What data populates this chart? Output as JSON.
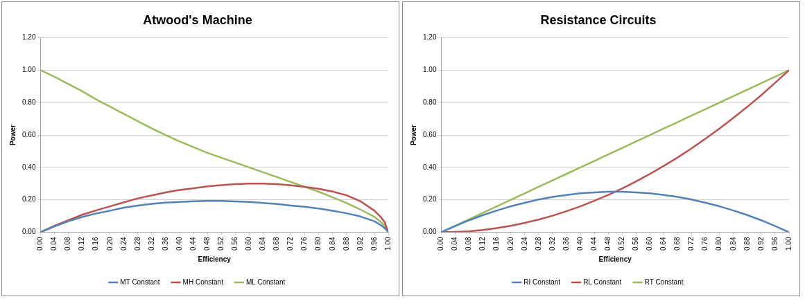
{
  "chart_data": [
    {
      "type": "line",
      "title": "Atwood's Machine",
      "xlabel": "Efficiency",
      "ylabel": "Power",
      "x": [
        0,
        0.04,
        0.08,
        0.12,
        0.16,
        0.2,
        0.24,
        0.28,
        0.32,
        0.36,
        0.4,
        0.44,
        0.48,
        0.52,
        0.56,
        0.6,
        0.64,
        0.68,
        0.72,
        0.76,
        0.8,
        0.84,
        0.88,
        0.92,
        0.96,
        0.98,
        0.99,
        1
      ],
      "series": [
        {
          "name": "MT Constant",
          "color": "#4f81bd",
          "values": [
            0,
            0.036,
            0.068,
            0.094,
            0.116,
            0.133,
            0.152,
            0.165,
            0.175,
            0.183,
            0.187,
            0.191,
            0.193,
            0.193,
            0.19,
            0.187,
            0.181,
            0.174,
            0.165,
            0.157,
            0.146,
            0.133,
            0.117,
            0.097,
            0.068,
            0.042,
            0.025,
            0
          ]
        },
        {
          "name": "MH Constant",
          "color": "#c0504d",
          "values": [
            0,
            0.04,
            0.074,
            0.108,
            0.135,
            0.16,
            0.185,
            0.209,
            0.228,
            0.246,
            0.261,
            0.271,
            0.283,
            0.291,
            0.297,
            0.3,
            0.3,
            0.297,
            0.29,
            0.28,
            0.268,
            0.251,
            0.228,
            0.191,
            0.133,
            0.09,
            0.06,
            0
          ]
        },
        {
          "name": "ML Constant",
          "color": "#9bbb59",
          "values": [
            1,
            0.96,
            0.915,
            0.87,
            0.82,
            0.775,
            0.73,
            0.685,
            0.64,
            0.6,
            0.56,
            0.525,
            0.49,
            0.46,
            0.43,
            0.4,
            0.37,
            0.34,
            0.31,
            0.28,
            0.25,
            0.215,
            0.18,
            0.14,
            0.095,
            0.06,
            0.04,
            0
          ]
        }
      ],
      "xlim": [
        0,
        1
      ],
      "xticks": [
        {
          "value": 0,
          "label": "0.00"
        },
        {
          "value": 0.04,
          "label": "0.04"
        },
        {
          "value": 0.08,
          "label": "0.08"
        },
        {
          "value": 0.12,
          "label": "0.12"
        },
        {
          "value": 0.16,
          "label": "0.16"
        },
        {
          "value": 0.2,
          "label": "0.20"
        },
        {
          "value": 0.24,
          "label": "0.24"
        },
        {
          "value": 0.28,
          "label": "0.28"
        },
        {
          "value": 0.32,
          "label": "0.32"
        },
        {
          "value": 0.36,
          "label": "0.36"
        },
        {
          "value": 0.4,
          "label": "0.40"
        },
        {
          "value": 0.44,
          "label": "0.44"
        },
        {
          "value": 0.48,
          "label": "0.48"
        },
        {
          "value": 0.52,
          "label": "0.52"
        },
        {
          "value": 0.56,
          "label": "0.56"
        },
        {
          "value": 0.6,
          "label": "0.60"
        },
        {
          "value": 0.64,
          "label": "0.64"
        },
        {
          "value": 0.68,
          "label": "0.68"
        },
        {
          "value": 0.72,
          "label": "0.72"
        },
        {
          "value": 0.76,
          "label": "0.76"
        },
        {
          "value": 0.8,
          "label": "0.80"
        },
        {
          "value": 0.84,
          "label": "0.84"
        },
        {
          "value": 0.88,
          "label": "0.88"
        },
        {
          "value": 0.92,
          "label": "0.92"
        },
        {
          "value": 0.96,
          "label": "0.96"
        },
        {
          "value": 1,
          "label": "1.00"
        }
      ],
      "ylim": [
        0,
        1.2
      ],
      "yticks": [
        {
          "value": 0,
          "label": "0.00"
        },
        {
          "value": 0.2,
          "label": "0.20"
        },
        {
          "value": 0.4,
          "label": "0.40"
        },
        {
          "value": 0.6,
          "label": "0.60"
        },
        {
          "value": 0.8,
          "label": "0.80"
        },
        {
          "value": 1,
          "label": "1.00"
        },
        {
          "value": 1.2,
          "label": "1.20"
        }
      ],
      "grid": "y",
      "legend": "bottom",
      "marker": "none",
      "line_style": "solid"
    },
    {
      "type": "line",
      "title": "Resistance Circuits",
      "xlabel": "Efficiency",
      "ylabel": "Power",
      "x": [
        0,
        0.04,
        0.08,
        0.12,
        0.16,
        0.2,
        0.24,
        0.28,
        0.32,
        0.36,
        0.4,
        0.44,
        0.48,
        0.52,
        0.56,
        0.6,
        0.64,
        0.68,
        0.72,
        0.76,
        0.8,
        0.84,
        0.88,
        0.92,
        0.96,
        1
      ],
      "series": [
        {
          "name": "RI Constant",
          "color": "#4f81bd",
          "values": [
            0,
            0.038,
            0.074,
            0.106,
            0.134,
            0.16,
            0.182,
            0.202,
            0.218,
            0.23,
            0.24,
            0.246,
            0.25,
            0.25,
            0.246,
            0.24,
            0.23,
            0.218,
            0.202,
            0.182,
            0.16,
            0.134,
            0.106,
            0.074,
            0.038,
            0
          ]
        },
        {
          "name": "RL Constant",
          "color": "#c0504d",
          "values": [
            0,
            0.002,
            0.006,
            0.014,
            0.026,
            0.04,
            0.058,
            0.078,
            0.102,
            0.13,
            0.16,
            0.194,
            0.23,
            0.27,
            0.314,
            0.36,
            0.41,
            0.462,
            0.518,
            0.578,
            0.64,
            0.706,
            0.774,
            0.846,
            0.922,
            1
          ]
        },
        {
          "name": "RT Constant",
          "color": "#9bbb59",
          "values": [
            0,
            0.04,
            0.08,
            0.12,
            0.16,
            0.2,
            0.24,
            0.28,
            0.32,
            0.36,
            0.4,
            0.44,
            0.48,
            0.52,
            0.56,
            0.6,
            0.64,
            0.68,
            0.72,
            0.76,
            0.8,
            0.84,
            0.88,
            0.92,
            0.96,
            1
          ]
        }
      ],
      "xlim": [
        0,
        1
      ],
      "xticks": [
        {
          "value": 0,
          "label": "0.00"
        },
        {
          "value": 0.04,
          "label": "0.04"
        },
        {
          "value": 0.08,
          "label": "0.08"
        },
        {
          "value": 0.12,
          "label": "0.12"
        },
        {
          "value": 0.16,
          "label": "0.16"
        },
        {
          "value": 0.2,
          "label": "0.20"
        },
        {
          "value": 0.24,
          "label": "0.24"
        },
        {
          "value": 0.28,
          "label": "0.28"
        },
        {
          "value": 0.32,
          "label": "0.32"
        },
        {
          "value": 0.36,
          "label": "0.36"
        },
        {
          "value": 0.4,
          "label": "0.40"
        },
        {
          "value": 0.44,
          "label": "0.44"
        },
        {
          "value": 0.48,
          "label": "0.48"
        },
        {
          "value": 0.52,
          "label": "0.52"
        },
        {
          "value": 0.56,
          "label": "0.56"
        },
        {
          "value": 0.6,
          "label": "0.60"
        },
        {
          "value": 0.64,
          "label": "0.64"
        },
        {
          "value": 0.68,
          "label": "0.68"
        },
        {
          "value": 0.72,
          "label": "0.72"
        },
        {
          "value": 0.76,
          "label": "0.76"
        },
        {
          "value": 0.8,
          "label": "0.80"
        },
        {
          "value": 0.84,
          "label": "0.84"
        },
        {
          "value": 0.88,
          "label": "0.88"
        },
        {
          "value": 0.92,
          "label": "0.92"
        },
        {
          "value": 0.96,
          "label": "0.96"
        },
        {
          "value": 1,
          "label": "1.00"
        }
      ],
      "ylim": [
        0,
        1.2
      ],
      "yticks": [
        {
          "value": 0,
          "label": "0.00"
        },
        {
          "value": 0.2,
          "label": "0.20"
        },
        {
          "value": 0.4,
          "label": "0.40"
        },
        {
          "value": 0.6,
          "label": "0.60"
        },
        {
          "value": 0.8,
          "label": "0.80"
        },
        {
          "value": 1,
          "label": "1.00"
        },
        {
          "value": 1.2,
          "label": "1.20"
        }
      ],
      "grid": "y",
      "legend": "bottom",
      "marker": "none",
      "line_style": "solid"
    }
  ]
}
